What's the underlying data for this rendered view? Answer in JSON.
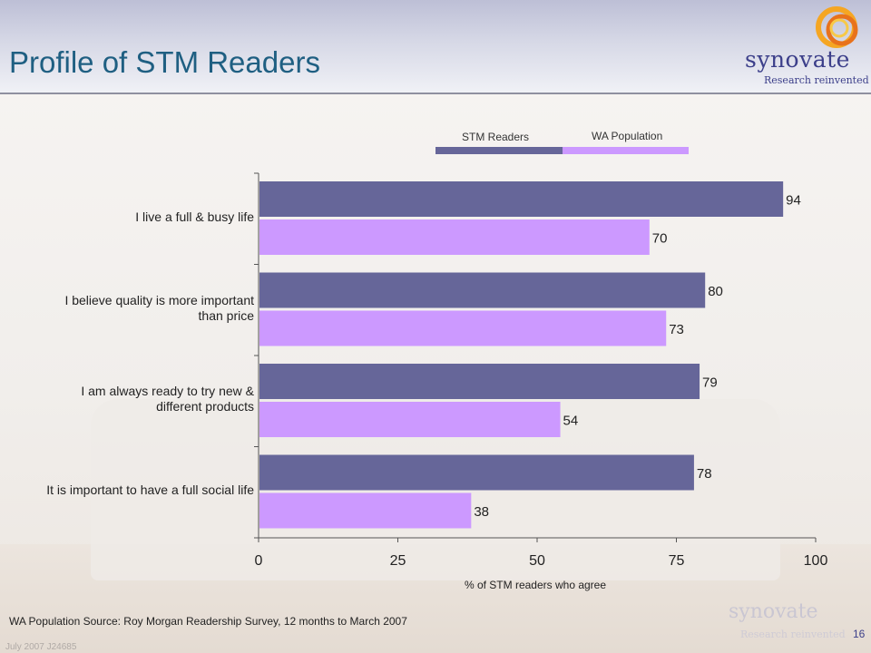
{
  "slide": {
    "title": "Profile of STM Readers",
    "logo_name": "synovate",
    "logo_tagline": "Research reinvented",
    "footer_source": "WA Population Source: Roy Morgan Readership Survey, 12 months to March 2007",
    "page_number": "16",
    "footer_small": "July 2007    J24685",
    "colors": {
      "title": "#1f5f82",
      "stm": "#666699",
      "wa": "#cc99ff",
      "logo": "#3c3f8a"
    }
  },
  "chart_data": {
    "type": "bar",
    "orientation": "horizontal",
    "categories": [
      "I live a  full & busy life",
      "I believe quality is more important than price",
      "I am always ready to try new & different products",
      "It is important to have a  full social life"
    ],
    "category_lines": [
      [
        "I live a  full & busy life"
      ],
      [
        "I believe quality is more important",
        "than price"
      ],
      [
        "I am always ready to try new &",
        "different products"
      ],
      [
        "It is important to have a  full social life"
      ]
    ],
    "series": [
      {
        "name": "STM Readers",
        "values": [
          94,
          80,
          79,
          78
        ],
        "color": "#666699"
      },
      {
        "name": "WA Population",
        "values": [
          70,
          73,
          54,
          38
        ],
        "color": "#cc99ff"
      }
    ],
    "xlabel": "% of STM readers who agree",
    "xlim": [
      0,
      100
    ],
    "xticks": [
      0,
      25,
      50,
      75,
      100
    ],
    "grid": false,
    "legend_position": "top"
  }
}
